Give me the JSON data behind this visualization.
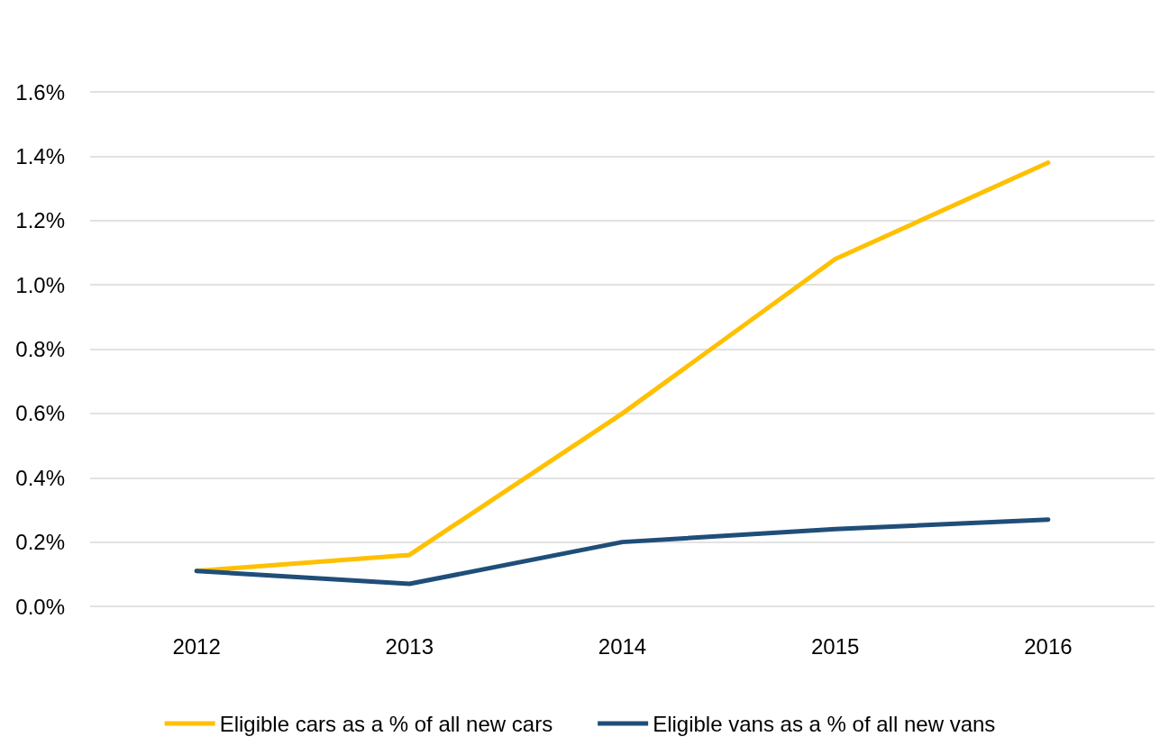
{
  "chart_data": {
    "type": "line",
    "categories": [
      "2012",
      "2013",
      "2014",
      "2015",
      "2016"
    ],
    "series": [
      {
        "name": "Eligible cars as a % of all new cars",
        "color": "#ffc000",
        "values": [
          0.11,
          0.16,
          0.6,
          1.08,
          1.38
        ]
      },
      {
        "name": "Eligible vans as a % of all new vans",
        "color": "#1f4e79",
        "values": [
          0.11,
          0.07,
          0.2,
          0.24,
          0.27
        ]
      }
    ],
    "ylim": [
      0,
      1.6
    ],
    "yticks": [
      {
        "value": 0,
        "label": "0.0%"
      },
      {
        "value": 0.2,
        "label": "0.2%"
      },
      {
        "value": 0.4,
        "label": "0.4%"
      },
      {
        "value": 0.6,
        "label": "0.6%"
      },
      {
        "value": 0.8,
        "label": "0.8%"
      },
      {
        "value": 1.0,
        "label": "1.0%"
      },
      {
        "value": 1.2,
        "label": "1.2%"
      },
      {
        "value": 1.4,
        "label": "1.4%"
      },
      {
        "value": 1.6,
        "label": "1.6%"
      }
    ],
    "grid": "y",
    "legend": "bottom",
    "marker": "none",
    "line_style": "solid"
  }
}
